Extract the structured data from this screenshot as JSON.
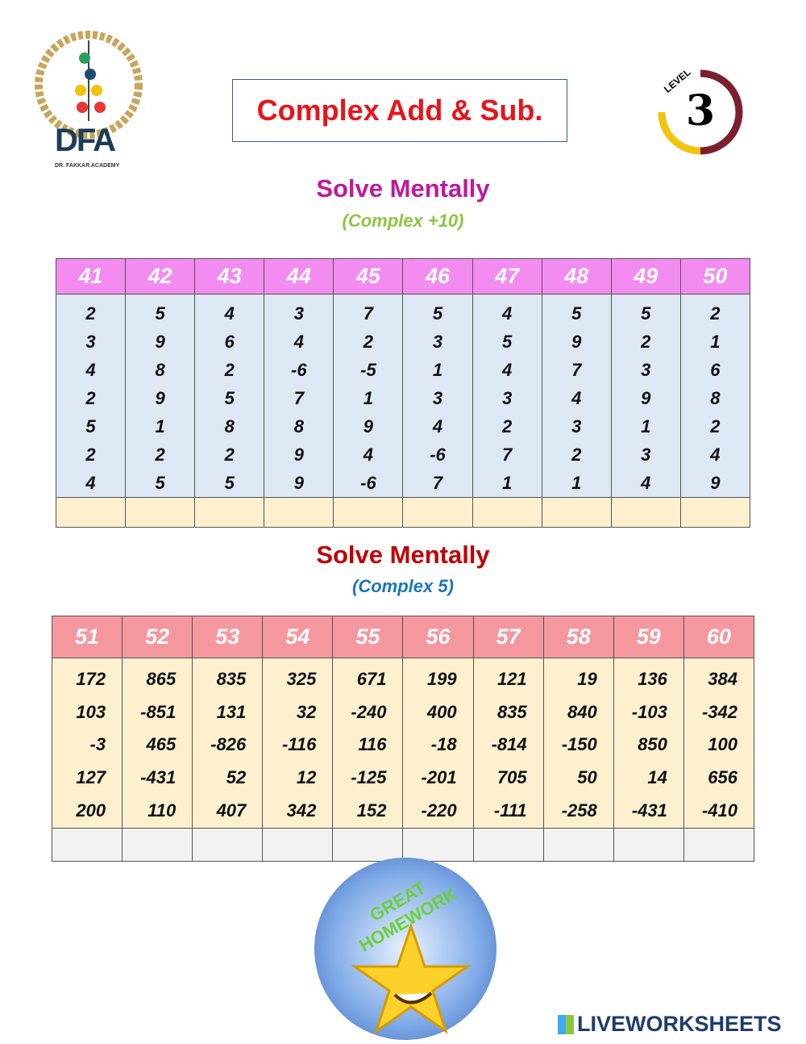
{
  "logo": {
    "text": "DFA",
    "subtitle": "DR. FAKKAR ACADEMY"
  },
  "title": "Complex Add & Sub.",
  "level": {
    "label": "LEVEL",
    "number": "3"
  },
  "section1": {
    "heading": "Solve Mentally",
    "subheading": "(Complex +10)",
    "columns": [
      {
        "id": "41",
        "nums": [
          "2",
          "3",
          "4",
          "2",
          "5",
          "2",
          "4"
        ]
      },
      {
        "id": "42",
        "nums": [
          "5",
          "9",
          "8",
          "9",
          "1",
          "2",
          "5"
        ]
      },
      {
        "id": "43",
        "nums": [
          "4",
          "6",
          "2",
          "5",
          "8",
          "2",
          "5"
        ]
      },
      {
        "id": "44",
        "nums": [
          "3",
          "4",
          "-6",
          "7",
          "8",
          "9",
          "9"
        ]
      },
      {
        "id": "45",
        "nums": [
          "7",
          "2",
          "-5",
          "1",
          "9",
          "4",
          "-6"
        ]
      },
      {
        "id": "46",
        "nums": [
          "5",
          "3",
          "1",
          "3",
          "4",
          "-6",
          "7"
        ]
      },
      {
        "id": "47",
        "nums": [
          "4",
          "5",
          "4",
          "3",
          "2",
          "7",
          "1"
        ]
      },
      {
        "id": "48",
        "nums": [
          "5",
          "9",
          "7",
          "4",
          "3",
          "2",
          "1"
        ]
      },
      {
        "id": "49",
        "nums": [
          "5",
          "2",
          "3",
          "9",
          "1",
          "3",
          "4"
        ]
      },
      {
        "id": "50",
        "nums": [
          "2",
          "1",
          "6",
          "8",
          "2",
          "4",
          "9"
        ]
      }
    ]
  },
  "section2": {
    "heading": "Solve Mentally",
    "subheading": "(Complex 5)",
    "columns": [
      {
        "id": "51",
        "nums": [
          "172",
          "103",
          "-3",
          "127",
          "200"
        ]
      },
      {
        "id": "52",
        "nums": [
          "865",
          "-851",
          "465",
          "-431",
          "110"
        ]
      },
      {
        "id": "53",
        "nums": [
          "835",
          "131",
          "-826",
          "52",
          "407"
        ]
      },
      {
        "id": "54",
        "nums": [
          "325",
          "32",
          "-116",
          "12",
          "342"
        ]
      },
      {
        "id": "55",
        "nums": [
          "671",
          "-240",
          "116",
          "-125",
          "152"
        ]
      },
      {
        "id": "56",
        "nums": [
          "199",
          "400",
          "-18",
          "-201",
          "-220"
        ]
      },
      {
        "id": "57",
        "nums": [
          "121",
          "835",
          "-814",
          "705",
          "-111"
        ]
      },
      {
        "id": "58",
        "nums": [
          "19",
          "840",
          "-150",
          "50",
          "-258"
        ]
      },
      {
        "id": "59",
        "nums": [
          "136",
          "-103",
          "850",
          "14",
          "-431"
        ]
      },
      {
        "id": "60",
        "nums": [
          "384",
          "-342",
          "100",
          "656",
          "-410"
        ]
      }
    ]
  },
  "badge": {
    "text": "GREAT HOMEWORK"
  },
  "footer": {
    "brand": "LIVEWORKSHEETS"
  },
  "colors": {
    "title": "#e8141b",
    "heading1": "#c0189c",
    "sub1": "#8cc63f",
    "heading2": "#c00000",
    "sub2": "#1b75bc"
  }
}
